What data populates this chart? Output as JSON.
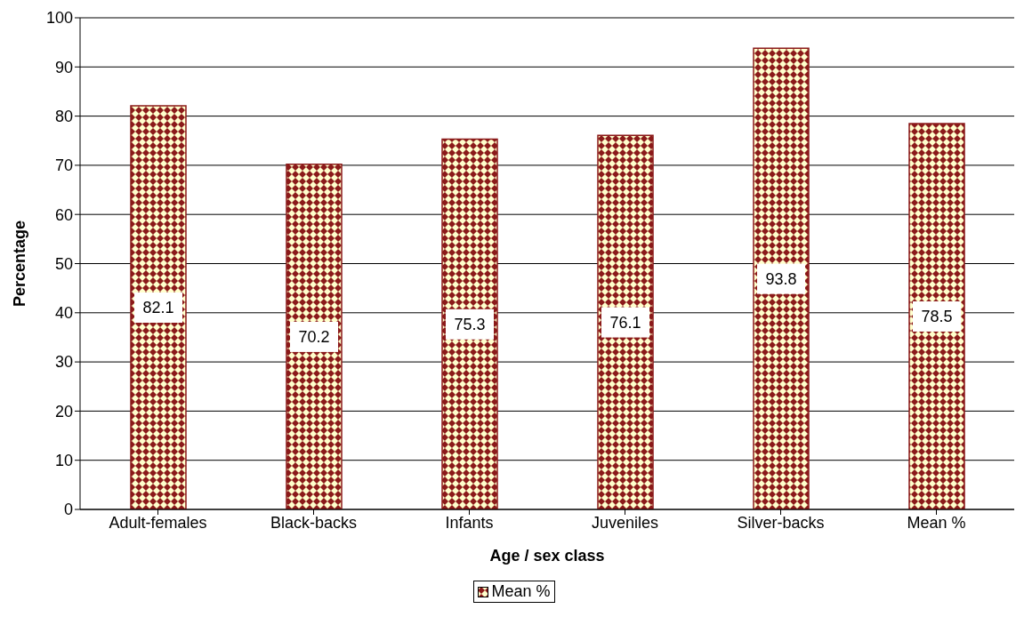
{
  "chart_data": {
    "type": "bar",
    "xlabel": "Age / sex class",
    "ylabel": "Percentage",
    "categories": [
      "Adult-females",
      "Black-backs",
      "Infants",
      "Juveniles",
      "Silver-backs",
      "Mean %"
    ],
    "series": [
      {
        "name": "Mean %",
        "color": "#8b1a1a",
        "values": [
          82.1,
          70.2,
          75.3,
          76.1,
          93.8,
          78.5
        ]
      }
    ],
    "ylim": [
      0,
      100
    ],
    "yticks": [
      0,
      10,
      20,
      30,
      40,
      50,
      60,
      70,
      80,
      90,
      100
    ],
    "grid": "y",
    "legend": "bottom",
    "data_labels": true
  }
}
